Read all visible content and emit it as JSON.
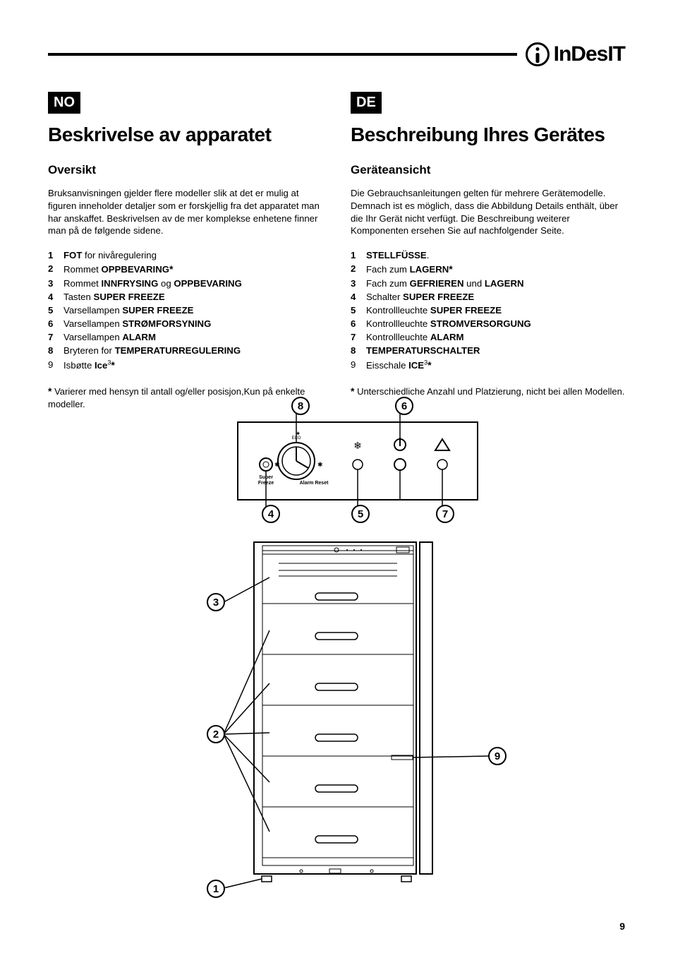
{
  "brand": {
    "name": "InDesIT"
  },
  "page_number": "9",
  "left": {
    "lang": "NO",
    "title": "Beskrivelse av apparatet",
    "subtitle": "Oversikt",
    "intro": "Bruksanvisningen gjelder flere modeller slik at det er mulig at figuren inneholder detaljer som er forskjellig fra det apparatet man har anskaffet. Beskrivelsen av de mer komplekse enhetene finner man på de følgende sidene.",
    "items": [
      {
        "n": "1",
        "pre": "",
        "bold": "FOT",
        "post": " for nivåregulering",
        "plain": false,
        "star": false
      },
      {
        "n": "2",
        "pre": "Rommet ",
        "bold": "OPPBEVARING",
        "post": "",
        "plain": false,
        "star": true
      },
      {
        "n": "3",
        "pre": "Rommet ",
        "bold": "INNFRYSING",
        "mid": " og ",
        "bold2": "OPPBEVARING",
        "post": "",
        "plain": false,
        "star": false
      },
      {
        "n": "4",
        "pre": "Tasten ",
        "bold": "SUPER FREEZE",
        "post": "",
        "plain": false,
        "star": false
      },
      {
        "n": "5",
        "pre": "Varsellampen ",
        "bold": "SUPER FREEZE",
        "post": "",
        "plain": false,
        "star": false
      },
      {
        "n": "6",
        "pre": "Varsellampen ",
        "bold": "STRØMFORSYNING",
        "post": "",
        "plain": false,
        "star": false
      },
      {
        "n": "7",
        "pre": "Varsellampen ",
        "bold": "ALARM",
        "post": "",
        "plain": false,
        "star": false
      },
      {
        "n": "8",
        "pre": "Bryteren for ",
        "bold": "TEMPERATURREGULERING",
        "post": "",
        "plain": false,
        "star": false
      },
      {
        "n": "9",
        "pre": "Isbøtte ",
        "bold": "Ice",
        "sup": "3",
        "post": "",
        "plain": true,
        "star": true
      }
    ],
    "footnote": " Varierer med hensyn til antall og/eller posisjon,Kun på enkelte modeller."
  },
  "right": {
    "lang": "DE",
    "title": "Beschreibung Ihres Gerätes",
    "subtitle": "Geräteansicht",
    "intro": "Die Gebrauchsanleitungen gelten für mehrere Gerätemodelle. Demnach ist es möglich, dass die Abbildung Details enthält, über die Ihr Gerät nicht verfügt. Die Beschreibung weiterer Komponenten ersehen Sie auf nachfolgender Seite.",
    "items": [
      {
        "n": "1",
        "pre": "",
        "bold": "STELLFÜSSE",
        "post": ".",
        "plain": false,
        "star": false
      },
      {
        "n": "2",
        "pre": "Fach zum ",
        "bold": "LAGERN",
        "post": "",
        "plain": false,
        "star": true
      },
      {
        "n": "3",
        "pre": "Fach zum ",
        "bold": "GEFRIEREN",
        "mid": " und ",
        "bold2": "LAGERN",
        "post": "",
        "plain": false,
        "star": false
      },
      {
        "n": "4",
        "pre": "Schalter ",
        "bold": "SUPER FREEZE",
        "post": "",
        "plain": false,
        "star": false
      },
      {
        "n": "5",
        "pre": "Kontrollleuchte ",
        "bold": "SUPER FREEZE",
        "post": "",
        "plain": false,
        "star": false
      },
      {
        "n": "6",
        "pre": "Kontrollleuchte ",
        "bold": "STROMVERSORGUNG",
        "post": "",
        "plain": false,
        "star": false
      },
      {
        "n": "7",
        "pre": "Kontrollleuchte ",
        "bold": "ALARM",
        "post": "",
        "plain": false,
        "star": false
      },
      {
        "n": "8",
        "pre": "",
        "bold": "TEMPERATURSCHALTER",
        "post": "",
        "plain": false,
        "star": false
      },
      {
        "n": "9",
        "pre": "Eisschale ",
        "bold": "ICE",
        "sup": "3",
        "post": "",
        "plain": true,
        "star": true
      }
    ],
    "footnote": " Unterschiedliche Anzahl und Platzierung, nicht bei allen Modellen."
  },
  "diagram": {
    "callouts": [
      "1",
      "2",
      "3",
      "4",
      "5",
      "6",
      "7",
      "8",
      "9"
    ],
    "panel": {
      "labels": {
        "super_freeze": "Super\nFreeze",
        "alarm_reset": "Alarm Reset",
        "eco": "ECO"
      }
    }
  }
}
